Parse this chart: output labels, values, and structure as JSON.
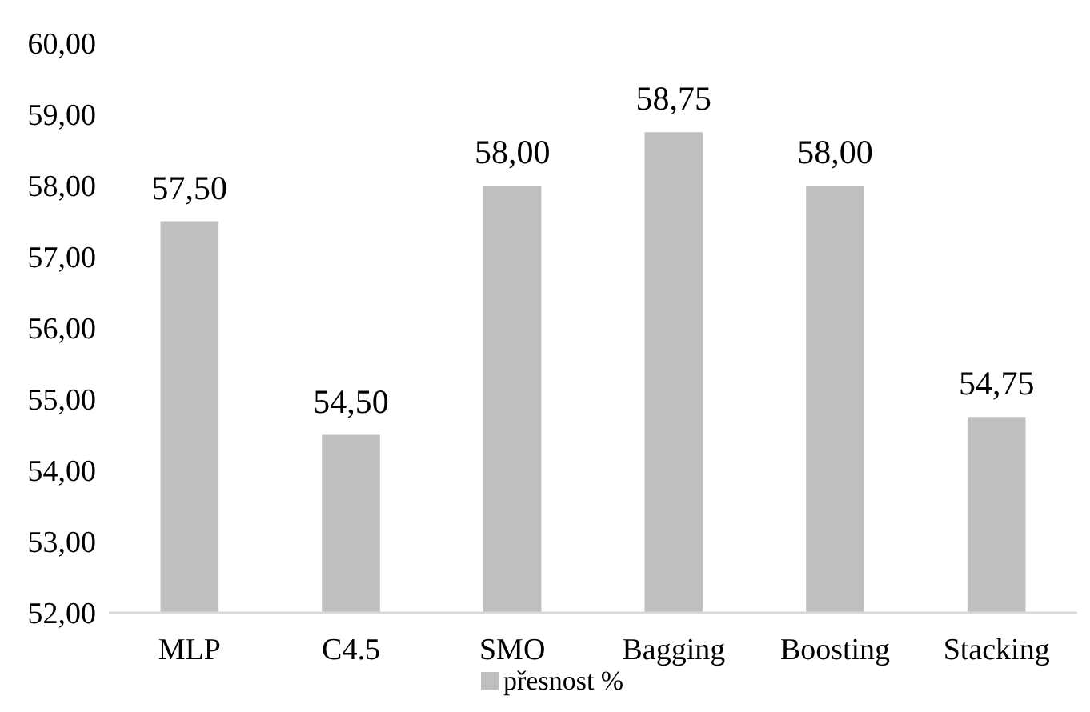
{
  "chart_data": {
    "type": "bar",
    "categories": [
      "MLP",
      "C4.5",
      "SMO",
      "Bagging",
      "Boosting",
      "Stacking"
    ],
    "series": [
      {
        "name": "přesnost %",
        "color": "#bfbfbf",
        "values": [
          57.5,
          54.5,
          58,
          58.75,
          58,
          54.75
        ],
        "value_labels": [
          "57,50",
          "54,50",
          "58,00",
          "58,75",
          "58,00",
          "54,75"
        ]
      }
    ],
    "ylim": [
      52,
      60
    ],
    "yticks": [
      {
        "value": 52,
        "label": "52,00"
      },
      {
        "value": 53,
        "label": "53,00"
      },
      {
        "value": 54,
        "label": "54,00"
      },
      {
        "value": 55,
        "label": "55,00"
      },
      {
        "value": 56,
        "label": "56,00"
      },
      {
        "value": 57,
        "label": "57,00"
      },
      {
        "value": 58,
        "label": "58,00"
      },
      {
        "value": 59,
        "label": "59,00"
      },
      {
        "value": 60,
        "label": "60,00"
      }
    ],
    "grid": false,
    "legend": "bottom"
  }
}
